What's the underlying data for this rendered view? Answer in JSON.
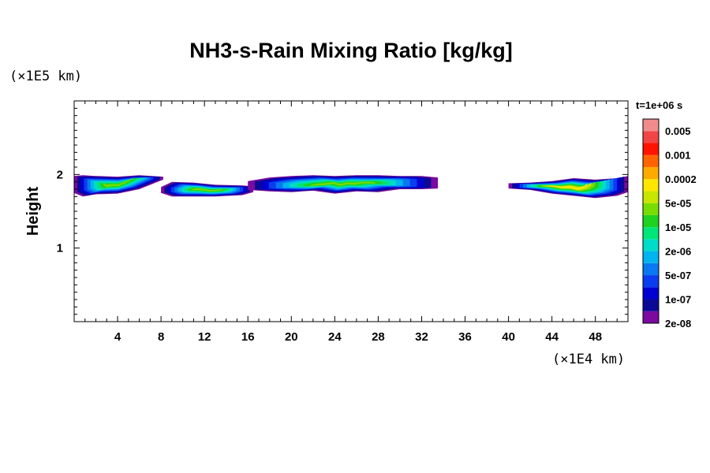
{
  "chart_data": {
    "type": "heatmap",
    "title": "NH3-s-Rain Mixing Ratio [kg/kg]",
    "ylabel": "Height",
    "x_unit": "(×1E4 km)",
    "y_unit": "(×1E5 km)",
    "time_label": "t=1e+06 s",
    "x_ticks": [
      "4",
      "8",
      "12",
      "16",
      "20",
      "24",
      "28",
      "32",
      "36",
      "40",
      "44",
      "48"
    ],
    "y_ticks": [
      "1",
      "2"
    ],
    "xlim": [
      0,
      51
    ],
    "ylim": [
      0,
      3
    ],
    "colorbar": {
      "labels": [
        "0.005",
        "0.001",
        "0.0002",
        "5e-05",
        "1e-05",
        "2e-06",
        "5e-07",
        "1e-07",
        "2e-08"
      ],
      "colors": [
        "#7a0aa0",
        "#0a0a96",
        "#0000d2",
        "#0a3cf0",
        "#0a78f0",
        "#00b4f0",
        "#00dcc8",
        "#00e678",
        "#1ed21e",
        "#78dc00",
        "#c8e600",
        "#ffe600",
        "#ffaa00",
        "#ff6400",
        "#ff1400",
        "#f04646",
        "#f08c8c"
      ]
    },
    "regions": [
      {
        "x": [
          0.0,
          0.8,
          2.0,
          4.0,
          6.0,
          8.2
        ],
        "y_top": [
          1.98,
          1.99,
          1.98,
          1.97,
          1.99,
          1.97
        ],
        "y_bottom": [
          1.75,
          1.7,
          1.73,
          1.74,
          1.8,
          1.93
        ],
        "peak": "5e-05"
      },
      {
        "x": [
          8.0,
          9.0,
          11.0,
          13.0,
          15.5,
          16.5
        ],
        "y_top": [
          1.83,
          1.9,
          1.89,
          1.86,
          1.85,
          1.84
        ],
        "y_bottom": [
          1.75,
          1.7,
          1.7,
          1.7,
          1.72,
          1.76
        ],
        "peak": "5e-05"
      },
      {
        "x": [
          16.0,
          18.0,
          20.0,
          22.0,
          24.0,
          26.0,
          28.0,
          30.0,
          32.0,
          33.5
        ],
        "y_top": [
          1.91,
          1.96,
          1.98,
          1.99,
          1.98,
          1.99,
          1.99,
          1.98,
          1.98,
          1.96
        ],
        "y_bottom": [
          1.79,
          1.77,
          1.76,
          1.78,
          1.74,
          1.77,
          1.76,
          1.8,
          1.8,
          1.81
        ],
        "peak": "5e-05"
      },
      {
        "x": [
          40.0,
          42.0,
          44.0,
          46.0,
          48.0,
          50.0,
          51.0
        ],
        "y_top": [
          1.88,
          1.89,
          1.91,
          1.95,
          1.93,
          1.95,
          1.98
        ],
        "y_bottom": [
          1.81,
          1.79,
          1.74,
          1.71,
          1.68,
          1.71,
          1.76
        ],
        "peak": "0.0002"
      }
    ]
  }
}
